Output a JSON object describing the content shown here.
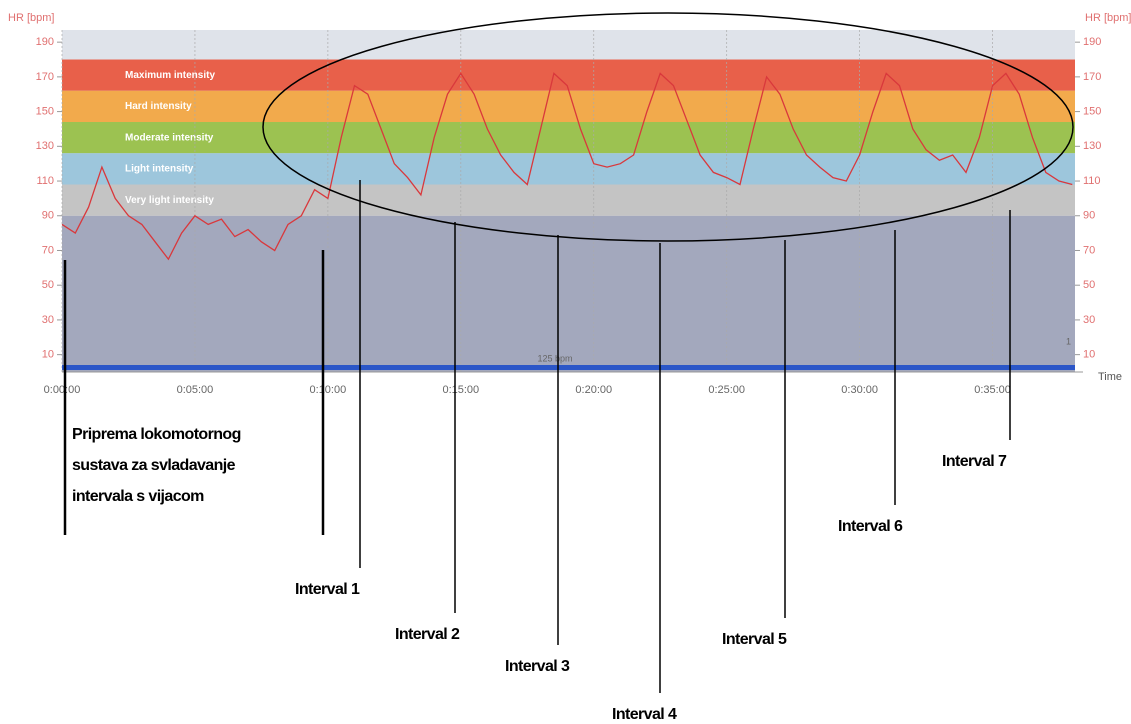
{
  "chart_data": {
    "type": "line",
    "y_label": "HR [bpm]",
    "y2_label": "HR [bpm]",
    "x_label": "Time",
    "ylim": [
      0,
      197
    ],
    "yticks": [
      10,
      30,
      50,
      70,
      90,
      110,
      130,
      150,
      170,
      190
    ],
    "y2lim": [
      0,
      197
    ],
    "y2ticks": [
      10,
      30,
      50,
      70,
      90,
      110,
      130,
      150,
      170,
      190
    ],
    "xlim": [
      0,
      38.1
    ],
    "xticks": [
      {
        "value": 0,
        "label": "0:00:00"
      },
      {
        "value": 5,
        "label": "0:05:00"
      },
      {
        "value": 10,
        "label": "0:10:00"
      },
      {
        "value": 15,
        "label": "0:15:00"
      },
      {
        "value": 20,
        "label": "0:20:00"
      },
      {
        "value": 25,
        "label": "0:25:00"
      },
      {
        "value": 30,
        "label": "0:30:00"
      },
      {
        "value": 35,
        "label": "0:35:00"
      }
    ],
    "grid": true,
    "zones": [
      {
        "name": "Maximum intensity",
        "from": 162,
        "to": 180,
        "color": "#e8604a"
      },
      {
        "name": "Hard intensity",
        "from": 144,
        "to": 162,
        "color": "#f2aa4c"
      },
      {
        "name": "Moderate intensity",
        "from": 126,
        "to": 144,
        "color": "#9cc251"
      },
      {
        "name": "Light intensity",
        "from": 108,
        "to": 126,
        "color": "#9dc6dc"
      },
      {
        "name": "Very light intensity",
        "from": 90,
        "to": 108,
        "color": "#c4c4c4"
      }
    ],
    "x": [
      0,
      0.5,
      1,
      1.5,
      2,
      2.5,
      3,
      3.5,
      4,
      4.5,
      5,
      5.5,
      6,
      6.5,
      7,
      7.5,
      8,
      8.5,
      9,
      9.5,
      10,
      10.5,
      11,
      11.5,
      12,
      12.5,
      13,
      13.5,
      14,
      14.5,
      15,
      15.5,
      16,
      16.5,
      17,
      17.5,
      18,
      18.5,
      19,
      19.5,
      20,
      20.5,
      21,
      21.5,
      22,
      22.5,
      23,
      23.5,
      24,
      24.5,
      25,
      25.5,
      26,
      26.5,
      27,
      27.5,
      28,
      28.5,
      29,
      29.5,
      30,
      30.5,
      31,
      31.5,
      32,
      32.5,
      33,
      33.5,
      34,
      34.5,
      35,
      35.5,
      36,
      36.5,
      37,
      37.5,
      38
    ],
    "series": [
      {
        "name": "HR",
        "color": "#d9383c",
        "values": [
          85,
          80,
          95,
          118,
          100,
          90,
          85,
          75,
          65,
          80,
          90,
          85,
          88,
          78,
          82,
          75,
          70,
          85,
          90,
          105,
          100,
          135,
          165,
          160,
          140,
          120,
          112,
          102,
          135,
          160,
          172,
          160,
          140,
          125,
          115,
          108,
          140,
          172,
          165,
          140,
          120,
          118,
          120,
          125,
          150,
          172,
          165,
          145,
          125,
          115,
          112,
          108,
          140,
          170,
          160,
          140,
          125,
          118,
          112,
          110,
          125,
          150,
          172,
          165,
          140,
          128,
          122,
          125,
          115,
          135,
          165,
          172,
          160,
          135,
          115,
          110,
          108
        ]
      }
    ],
    "bottom_bar_label": "125 bpm",
    "corner_label": "1",
    "annotations": {
      "warmup": [
        "Priprema lokomotornog",
        "sustava za svladavanje",
        "intervala s vijacom"
      ],
      "intervals": [
        "Interval 1",
        "Interval 2",
        "Interval 3",
        "Interval 4",
        "Interval 5",
        "Interval 6",
        "Interval 7"
      ]
    }
  }
}
